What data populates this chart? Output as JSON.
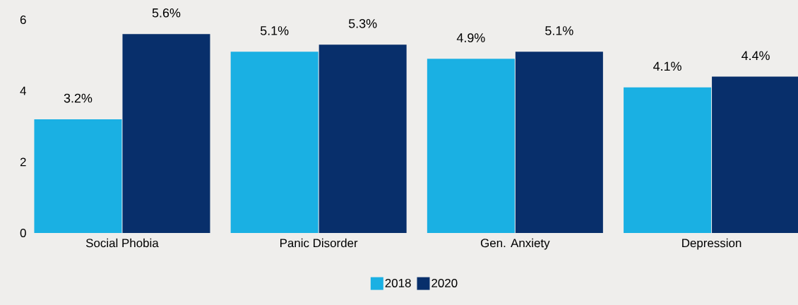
{
  "chart_data": {
    "type": "bar",
    "categories": [
      "Social Phobia",
      "Panic Disorder",
      "Gen. Anxiety",
      "Depression"
    ],
    "series": [
      {
        "name": "2018",
        "color": "#1ab0e3",
        "values": [
          3.2,
          5.1,
          4.9,
          4.1
        ],
        "value_labels": [
          "3.2%",
          "5.1%",
          "4.9%",
          "4.1%"
        ]
      },
      {
        "name": "2020",
        "color": "#082f6b",
        "values": [
          5.6,
          5.3,
          5.1,
          4.4
        ],
        "value_labels": [
          "5.6%",
          "5.3%",
          "5.1%",
          "4.4%"
        ]
      }
    ],
    "ylim": [
      0,
      6
    ],
    "yticks": [
      0,
      2,
      4,
      6
    ],
    "legend": "bottom"
  }
}
